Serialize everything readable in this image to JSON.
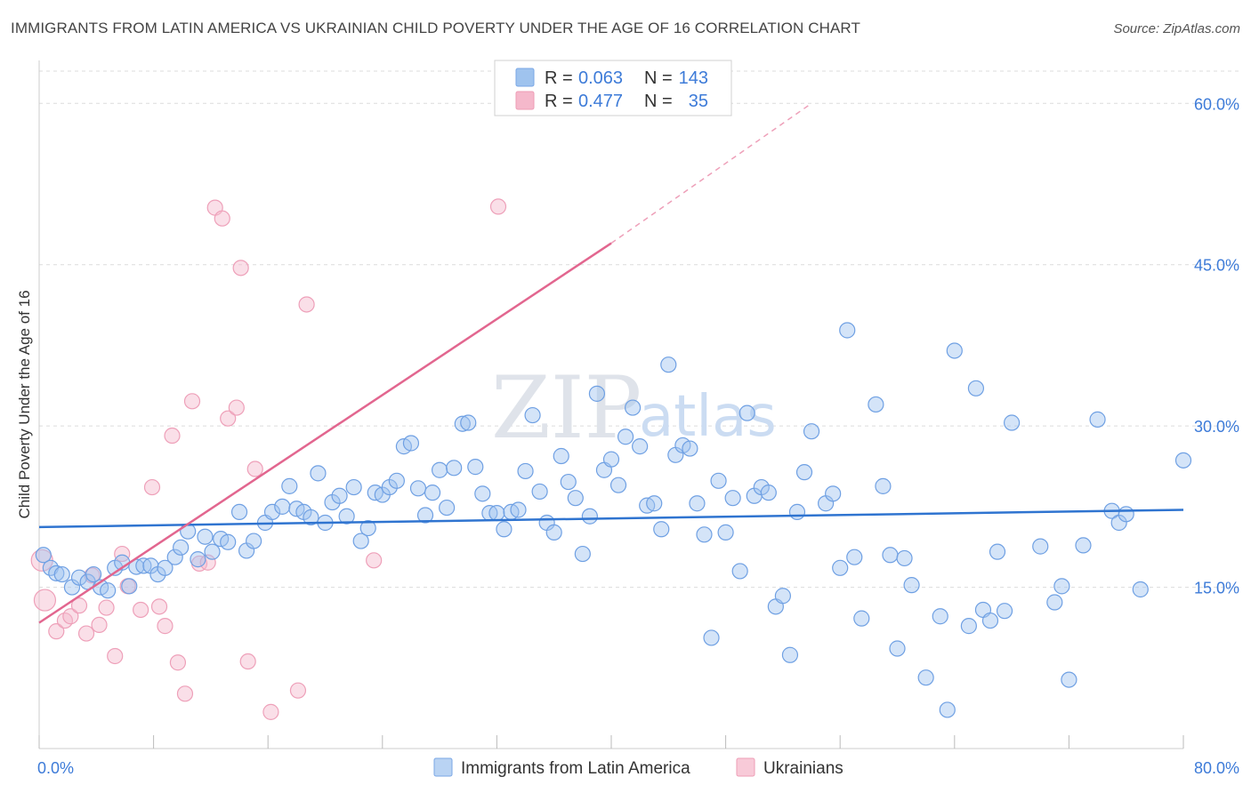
{
  "title": "IMMIGRANTS FROM LATIN AMERICA VS UKRAINIAN CHILD POVERTY UNDER THE AGE OF 16 CORRELATION CHART",
  "source": "Source: ZipAtlas.com",
  "watermark": {
    "zip": "ZIP",
    "atlas": "atlas"
  },
  "legend": {
    "rows": [
      {
        "r_label": "R =",
        "r_value": "0.063",
        "n_label": "N =",
        "n_value": "143",
        "color": "#9fc3ee"
      },
      {
        "r_label": "R =",
        "r_value": "0.477",
        "n_label": "N =",
        "n_value": "35",
        "color": "#f5b8cb"
      }
    ]
  },
  "chart_data": {
    "type": "scatter",
    "title": "IMMIGRANTS FROM LATIN AMERICA VS UKRAINIAN CHILD POVERTY UNDER THE AGE OF 16 CORRELATION CHART",
    "xlabel": "",
    "ylabel": "Child Poverty Under the Age of 16",
    "xlim": [
      0,
      80
    ],
    "ylim": [
      0,
      63
    ],
    "x_tick_labels": [
      "0.0%",
      "80.0%"
    ],
    "y_ticks": [
      15,
      30,
      45,
      60
    ],
    "y_tick_labels": [
      "15.0%",
      "30.0%",
      "45.0%",
      "60.0%"
    ],
    "grid": true,
    "legend_position": "bottom",
    "series": [
      {
        "name": "Immigrants from Latin America",
        "color": "#6fa0e3",
        "trend": {
          "x": [
            0,
            80
          ],
          "y": [
            20.6,
            22.2
          ]
        },
        "points": [
          [
            0.3,
            18
          ],
          [
            0.8,
            16.8
          ],
          [
            1.2,
            16.3
          ],
          [
            1.6,
            16.2
          ],
          [
            2.3,
            15
          ],
          [
            2.8,
            15.9
          ],
          [
            3.4,
            15.5
          ],
          [
            3.8,
            16.2
          ],
          [
            4.3,
            15
          ],
          [
            4.8,
            14.7
          ],
          [
            5.3,
            16.8
          ],
          [
            5.8,
            17.3
          ],
          [
            6.3,
            15.1
          ],
          [
            6.8,
            16.9
          ],
          [
            7.3,
            17
          ],
          [
            7.8,
            17
          ],
          [
            8.3,
            16.2
          ],
          [
            8.8,
            16.8
          ],
          [
            9.5,
            17.8
          ],
          [
            9.9,
            18.7
          ],
          [
            10.4,
            20.2
          ],
          [
            11.1,
            17.6
          ],
          [
            11.6,
            19.7
          ],
          [
            12.1,
            18.3
          ],
          [
            12.7,
            19.5
          ],
          [
            13.2,
            19.2
          ],
          [
            14.0,
            22
          ],
          [
            14.5,
            18.4
          ],
          [
            15.0,
            19.3
          ],
          [
            15.8,
            21
          ],
          [
            16.3,
            22
          ],
          [
            17,
            22.5
          ],
          [
            17.5,
            24.4
          ],
          [
            18,
            22.3
          ],
          [
            18.5,
            22
          ],
          [
            19,
            21.5
          ],
          [
            19.5,
            25.6
          ],
          [
            20,
            21
          ],
          [
            20.5,
            22.9
          ],
          [
            21,
            23.5
          ],
          [
            21.5,
            21.6
          ],
          [
            22,
            24.3
          ],
          [
            22.5,
            19.3
          ],
          [
            23,
            20.5
          ],
          [
            23.5,
            23.8
          ],
          [
            24,
            23.6
          ],
          [
            24.5,
            24.3
          ],
          [
            25,
            24.9
          ],
          [
            25.5,
            28.1
          ],
          [
            26,
            28.4
          ],
          [
            26.5,
            24.2
          ],
          [
            27,
            21.7
          ],
          [
            27.5,
            23.8
          ],
          [
            28.0,
            25.9
          ],
          [
            28.5,
            22.4
          ],
          [
            29,
            26.1
          ],
          [
            29.6,
            30.2
          ],
          [
            30,
            30.3
          ],
          [
            30.5,
            26.2
          ],
          [
            31,
            23.7
          ],
          [
            31.5,
            21.9
          ],
          [
            32,
            21.9
          ],
          [
            32.5,
            20.4
          ],
          [
            33,
            22
          ],
          [
            33.5,
            22.2
          ],
          [
            34,
            25.8
          ],
          [
            34.5,
            31
          ],
          [
            35,
            23.9
          ],
          [
            35.5,
            21
          ],
          [
            36,
            20.1
          ],
          [
            36.5,
            27.2
          ],
          [
            37,
            24.8
          ],
          [
            37.5,
            23.3
          ],
          [
            38,
            18.1
          ],
          [
            38.5,
            21.6
          ],
          [
            39,
            33
          ],
          [
            39.5,
            25.9
          ],
          [
            40,
            26.9
          ],
          [
            40.5,
            24.5
          ],
          [
            41,
            29
          ],
          [
            41.5,
            31.7
          ],
          [
            42,
            28.1
          ],
          [
            42.5,
            22.6
          ],
          [
            43,
            22.8
          ],
          [
            43.5,
            20.4
          ],
          [
            44,
            35.7
          ],
          [
            44.5,
            27.3
          ],
          [
            45,
            28.2
          ],
          [
            45.5,
            27.9
          ],
          [
            46,
            22.8
          ],
          [
            46.5,
            19.9
          ],
          [
            47,
            10.3
          ],
          [
            47.5,
            24.9
          ],
          [
            48,
            20.1
          ],
          [
            48.5,
            23.3
          ],
          [
            49,
            16.5
          ],
          [
            49.5,
            31.2
          ],
          [
            50,
            23.5
          ],
          [
            50.5,
            24.3
          ],
          [
            51,
            23.8
          ],
          [
            51.5,
            13.2
          ],
          [
            52,
            14.2
          ],
          [
            52.5,
            8.7
          ],
          [
            53,
            22
          ],
          [
            53.5,
            25.7
          ],
          [
            54,
            29.5
          ],
          [
            55,
            22.8
          ],
          [
            55.5,
            23.7
          ],
          [
            56,
            16.8
          ],
          [
            56.5,
            38.9
          ],
          [
            57,
            17.8
          ],
          [
            57.5,
            12.1
          ],
          [
            58.5,
            32
          ],
          [
            59,
            24.4
          ],
          [
            59.5,
            18
          ],
          [
            60,
            9.3
          ],
          [
            60.5,
            17.7
          ],
          [
            61,
            15.2
          ],
          [
            62,
            6.6
          ],
          [
            63,
            12.3
          ],
          [
            63.5,
            3.6
          ],
          [
            64,
            37
          ],
          [
            65,
            11.4
          ],
          [
            65.5,
            33.5
          ],
          [
            66,
            12.9
          ],
          [
            66.5,
            11.9
          ],
          [
            67,
            18.3
          ],
          [
            67.5,
            12.8
          ],
          [
            68,
            30.3
          ],
          [
            70,
            18.8
          ],
          [
            71,
            13.6
          ],
          [
            71.5,
            15.1
          ],
          [
            72,
            6.4
          ],
          [
            73,
            18.9
          ],
          [
            74,
            30.6
          ],
          [
            75,
            22.1
          ],
          [
            75.5,
            21
          ],
          [
            76,
            21.8
          ],
          [
            77,
            14.8
          ],
          [
            80,
            26.8
          ]
        ]
      },
      {
        "name": "Ukrainians",
        "color": "#f0a3bb",
        "trend": {
          "x": [
            0,
            40
          ],
          "y": [
            11.7,
            47.0
          ],
          "dashed_to": {
            "x": 54,
            "y": 60
          }
        },
        "points": [
          [
            0.2,
            17.5
          ],
          [
            0.4,
            13.8
          ],
          [
            1.2,
            10.9
          ],
          [
            1.8,
            11.9
          ],
          [
            2.2,
            12.3
          ],
          [
            2.8,
            13.3
          ],
          [
            3.3,
            10.7
          ],
          [
            3.7,
            16.1
          ],
          [
            4.2,
            11.5
          ],
          [
            4.7,
            13.1
          ],
          [
            5.3,
            8.6
          ],
          [
            5.8,
            18.1
          ],
          [
            6.2,
            15.1
          ],
          [
            7.1,
            12.9
          ],
          [
            7.9,
            24.3
          ],
          [
            8.4,
            13.2
          ],
          [
            8.8,
            11.4
          ],
          [
            9.3,
            29.1
          ],
          [
            9.7,
            8
          ],
          [
            10.2,
            5.1
          ],
          [
            10.7,
            32.3
          ],
          [
            11.2,
            17.2
          ],
          [
            11.8,
            17.3
          ],
          [
            12.3,
            50.3
          ],
          [
            12.8,
            49.3
          ],
          [
            13.2,
            30.7
          ],
          [
            13.8,
            31.7
          ],
          [
            14.1,
            44.7
          ],
          [
            14.6,
            8.1
          ],
          [
            15.1,
            26
          ],
          [
            16.2,
            3.4
          ],
          [
            18.1,
            5.4
          ],
          [
            18.7,
            41.3
          ],
          [
            23.4,
            17.5
          ],
          [
            32.1,
            50.4
          ]
        ]
      }
    ]
  }
}
